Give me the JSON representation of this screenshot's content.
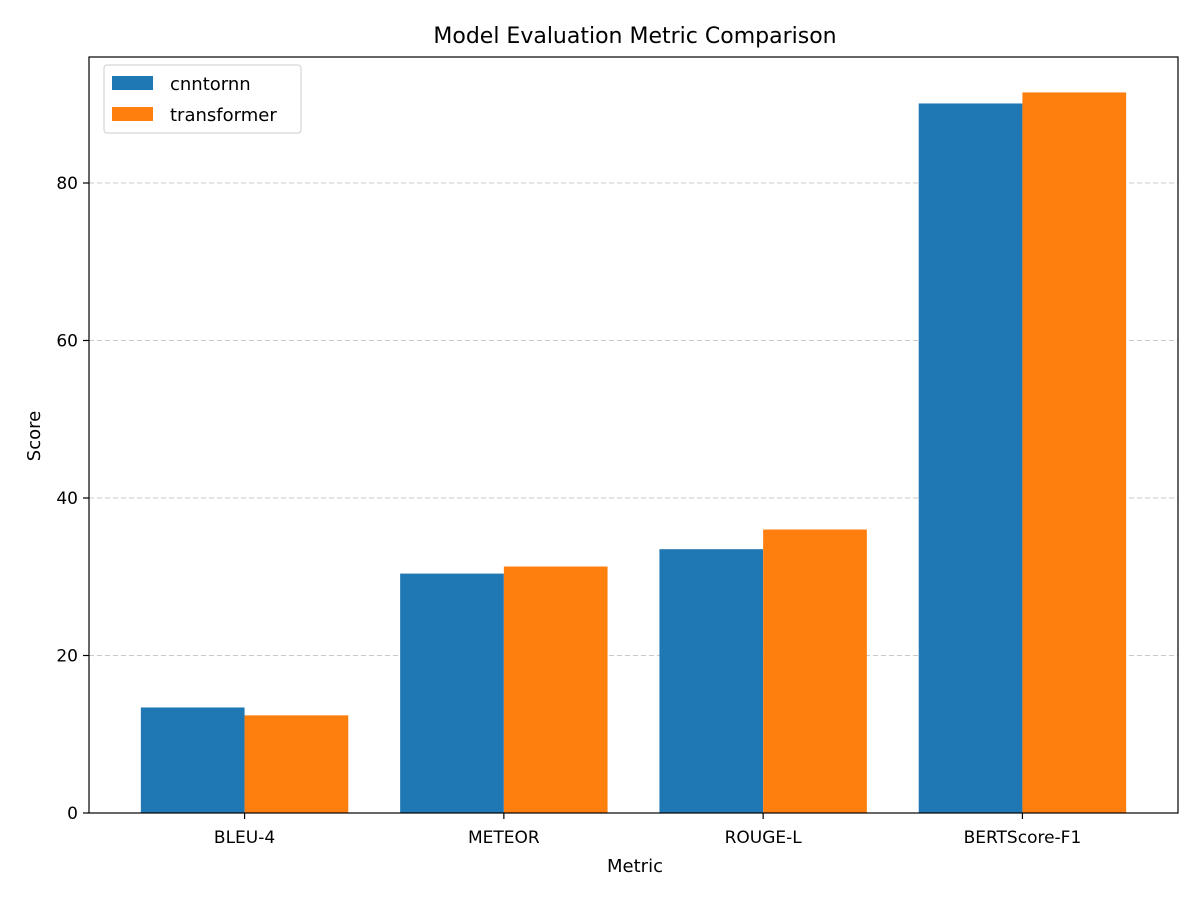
{
  "chart_data": {
    "type": "bar",
    "title": "Model Evaluation Metric Comparison",
    "xlabel": "Metric",
    "ylabel": "Score",
    "categories": [
      "BLEU-4",
      "METEOR",
      "ROUGE-L",
      "BERTScore-F1"
    ],
    "series": [
      {
        "name": "cnntornn",
        "color": "#1f77b4",
        "values": [
          13.4,
          30.4,
          33.5,
          90.1
        ]
      },
      {
        "name": "transformer",
        "color": "#ff7f0e",
        "values": [
          12.4,
          31.3,
          36.0,
          91.5
        ]
      }
    ],
    "ylim": [
      0,
      96
    ],
    "yticks": [
      0,
      20,
      40,
      60,
      80
    ],
    "grid": {
      "axis": "y",
      "style": "dashed",
      "color": "#c8c8c8"
    },
    "legend": {
      "position": "top-left"
    }
  }
}
